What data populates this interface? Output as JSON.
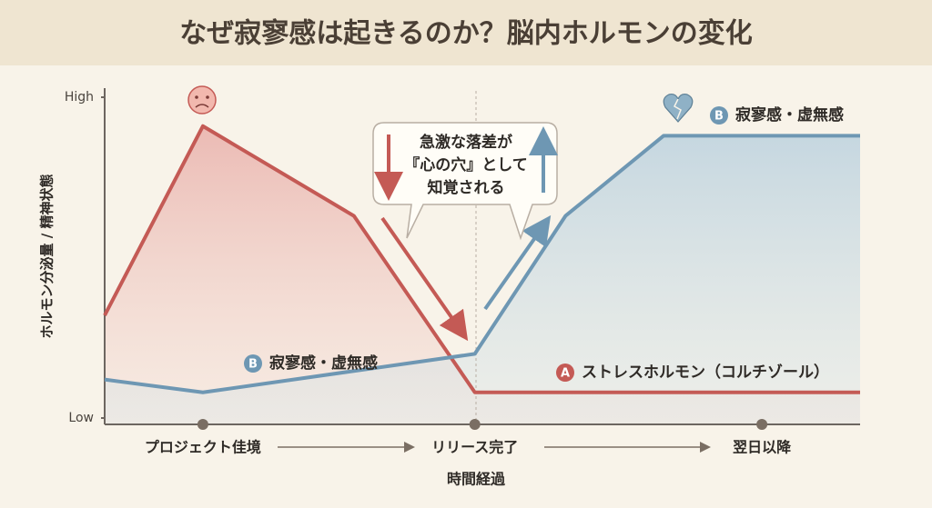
{
  "chart_data": {
    "type": "line",
    "title": "なぜ寂寥感は起きるのか？脳内ホルモンの変化",
    "ylabel": "ホルモン分泌量 / 精神状態",
    "xlabel": "時間経過",
    "xlim": [
      0,
      100
    ],
    "ylim": [
      0,
      100
    ],
    "yticks": [
      {
        "value": 0,
        "label": "Low"
      },
      {
        "value": 100,
        "label": "High"
      }
    ],
    "xticks": [
      {
        "value": 13,
        "label": "プロジェクト佳境"
      },
      {
        "value": 49,
        "label": "リリース完了"
      },
      {
        "value": 87,
        "label": "翌日以降"
      }
    ],
    "series": [
      {
        "name": "ストレスホルモン（コルチゾール）",
        "badge": "A",
        "color": "#c45a55",
        "x": [
          0,
          13,
          33,
          49,
          100
        ],
        "values": [
          32,
          91,
          63,
          8,
          8
        ]
      },
      {
        "name": "寂寥感・虚無感",
        "badge": "B",
        "color": "#6e97b3",
        "x": [
          0,
          13,
          49,
          61,
          74,
          100
        ],
        "values": [
          12,
          8,
          20,
          63,
          88,
          88
        ]
      }
    ],
    "annotation": [
      "急激な落差が",
      "『心の穴』として",
      "知覚される"
    ]
  }
}
